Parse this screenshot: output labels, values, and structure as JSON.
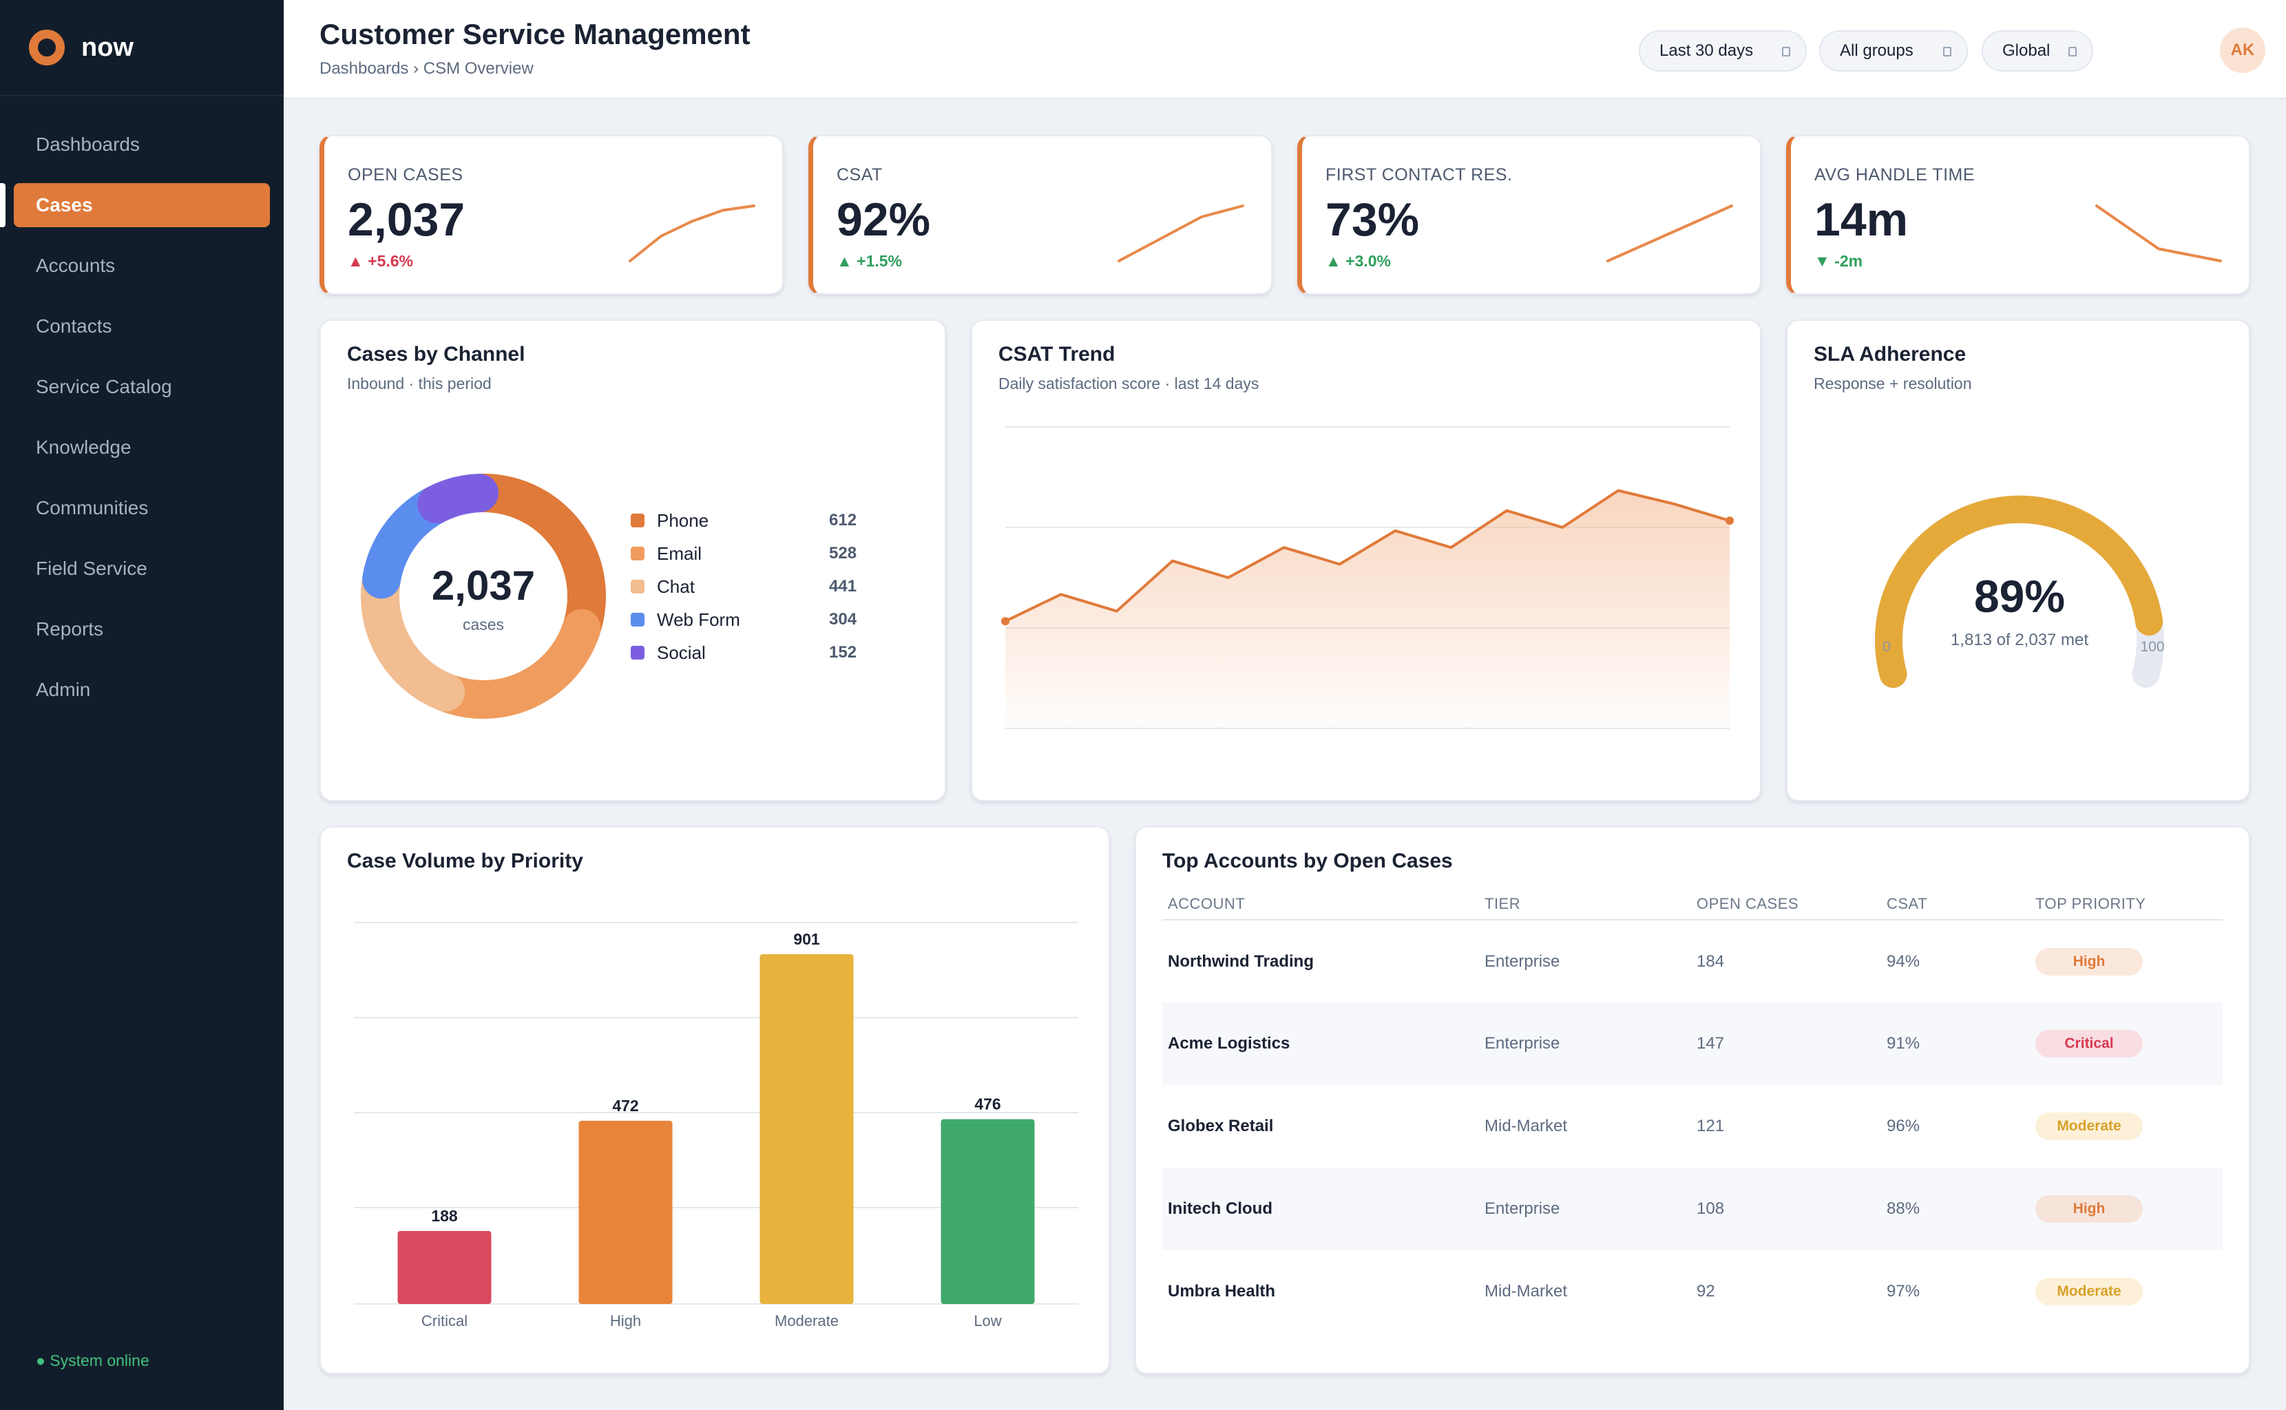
{
  "app": {
    "brand": "now"
  },
  "sidebar": {
    "items": [
      {
        "label": "Dashboards",
        "name": "dashboards"
      },
      {
        "label": "Cases",
        "name": "cases",
        "active": true
      },
      {
        "label": "Accounts",
        "name": "accounts"
      },
      {
        "label": "Contacts",
        "name": "contacts"
      },
      {
        "label": "Service Catalog",
        "name": "service-catalog"
      },
      {
        "label": "Knowledge",
        "name": "knowledge"
      },
      {
        "label": "Communities",
        "name": "communities"
      },
      {
        "label": "Field Service",
        "name": "field-service"
      },
      {
        "label": "Reports",
        "name": "reports"
      },
      {
        "label": "Admin",
        "name": "admin"
      }
    ],
    "status": "● System online"
  },
  "header": {
    "title": "Customer Service Management",
    "breadcrumb": "Dashboards › CSM Overview",
    "filters": {
      "range": "Last 30 days",
      "groups": "All groups",
      "scope": "Global"
    },
    "avatar_initials": "AK"
  },
  "kpis": [
    {
      "label": "OPEN CASES",
      "value": "2,037",
      "delta": "▲ +5.6%",
      "delta_color": "#d6384f",
      "spark": [
        0,
        0.45,
        0.72,
        0.92,
        1
      ]
    },
    {
      "label": "CSAT",
      "value": "92%",
      "delta": "▲ +1.5%",
      "delta_color": "#2f9e5c",
      "spark": [
        0,
        0.5,
        1,
        1.25
      ]
    },
    {
      "label": "FIRST CONTACT RES.",
      "value": "73%",
      "delta": "▲ +3.0%",
      "delta_color": "#2f9e5c",
      "spark": [
        0,
        0.5,
        1
      ]
    },
    {
      "label": "AVG HANDLE TIME",
      "value": "14m",
      "delta": "▼ -2m",
      "delta_color": "#2f9e5c",
      "spark": [
        1,
        0.22,
        0
      ]
    }
  ],
  "channel": {
    "title": "Cases by Channel",
    "subtitle": "Inbound · this period",
    "total": "2,037",
    "total_label": "cases",
    "slices": [
      {
        "name": "Phone",
        "value": 612,
        "color": "#e07a3a"
      },
      {
        "name": "Email",
        "value": 528,
        "color": "#f09c5e"
      },
      {
        "name": "Chat",
        "value": 441,
        "color": "#f2bd90"
      },
      {
        "name": "Web Form",
        "value": 304,
        "color": "#5b8def"
      },
      {
        "name": "Social",
        "value": 152,
        "color": "#7b5fe0"
      }
    ]
  },
  "csat_trend": {
    "title": "CSAT Trend",
    "subtitle": "Daily satisfaction score · last 14 days",
    "chart_data": {
      "type": "area",
      "x": [
        1,
        2,
        3,
        4,
        5,
        6,
        7,
        8,
        9,
        10,
        11,
        12,
        13,
        14
      ],
      "y": [
        89.2,
        90.0,
        89.5,
        91.0,
        90.5,
        91.4,
        90.9,
        91.9,
        91.4,
        92.5,
        92.0,
        93.1,
        92.7,
        92.2
      ],
      "ylim": [
        86,
        95
      ]
    }
  },
  "sla": {
    "title": "SLA Adherence",
    "subtitle": "Response + resolution",
    "value_text": "89%",
    "value": 89,
    "detail": "1,813 of 2,037 met",
    "min_label": "0",
    "max_label": "100",
    "color": "#e5a93a"
  },
  "priority": {
    "title": "Case Volume by Priority",
    "chart_data": {
      "type": "bar",
      "categories": [
        "Critical",
        "High",
        "Moderate",
        "Low"
      ],
      "values": [
        188,
        472,
        901,
        476
      ],
      "colors": [
        "#d94a5f",
        "#e8833a",
        "#e7b33c",
        "#3fa96c"
      ],
      "ylim": [
        0,
        1000
      ]
    }
  },
  "accounts": {
    "title": "Top Accounts by Open Cases",
    "columns": [
      "ACCOUNT",
      "TIER",
      "OPEN CASES",
      "CSAT",
      "TOP PRIORITY"
    ],
    "rows": [
      {
        "account": "Northwind Trading",
        "tier": "Enterprise",
        "open": "184",
        "csat": "94%",
        "priority": "High",
        "pill_bg": "#fbe8dc",
        "pill_fg": "#e07a3a"
      },
      {
        "account": "Acme Logistics",
        "tier": "Enterprise",
        "open": "147",
        "csat": "91%",
        "priority": "Critical",
        "pill_bg": "#f8dde2",
        "pill_fg": "#d6384f"
      },
      {
        "account": "Globex Retail",
        "tier": "Mid-Market",
        "open": "121",
        "csat": "96%",
        "priority": "Moderate",
        "pill_bg": "#fcf1d8",
        "pill_fg": "#d9a02a"
      },
      {
        "account": "Initech Cloud",
        "tier": "Enterprise",
        "open": "108",
        "csat": "88%",
        "priority": "High",
        "pill_bg": "#f6e3d9",
        "pill_fg": "#e07a3a"
      },
      {
        "account": "Umbra Health",
        "tier": "Mid-Market",
        "open": "92",
        "csat": "97%",
        "priority": "Moderate",
        "pill_bg": "#fcf1d8",
        "pill_fg": "#d9a02a"
      }
    ]
  }
}
